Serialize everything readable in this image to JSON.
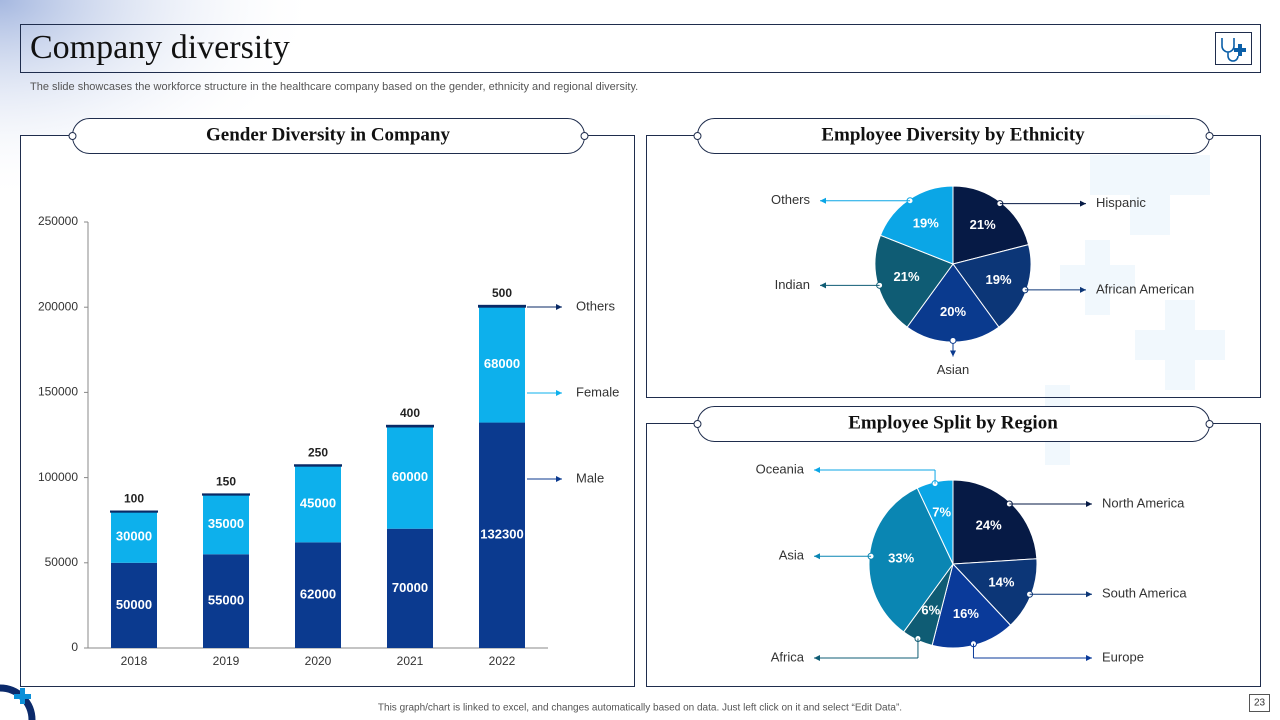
{
  "title": "Company diversity",
  "subtitle": "The slide showcases the workforce structure in the healthcare company based on the gender, ethnicity and regional diversity.",
  "footer": "This graph/chart is linked to excel, and changes automatically based on data. Just left click on it and select “Edit Data”.",
  "page_number": "23",
  "chart_data": [
    {
      "type": "bar",
      "title": "Gender Diversity in Company",
      "stacked": true,
      "categories": [
        "2018",
        "2019",
        "2020",
        "2021",
        "2022"
      ],
      "series": [
        {
          "name": "Male",
          "color": "#0b3a8f",
          "values": [
            50000,
            55000,
            62000,
            70000,
            132300
          ]
        },
        {
          "name": "Female",
          "color": "#0db0ec",
          "values": [
            30000,
            35000,
            45000,
            60000,
            68000
          ]
        },
        {
          "name": "Others",
          "color": "#0a2a66",
          "values": [
            100,
            150,
            250,
            400,
            500
          ]
        }
      ],
      "ylim": [
        0,
        250000
      ],
      "yticks": [
        0,
        50000,
        100000,
        150000,
        200000,
        250000
      ]
    },
    {
      "type": "pie",
      "title": "Employee Diversity by Ethnicity",
      "categories": [
        "Hispanic",
        "African American",
        "Asian",
        "Indian",
        "Others"
      ],
      "values": [
        21,
        19,
        20,
        21,
        19
      ],
      "value_labels": [
        "21%",
        "19%",
        "20%",
        "21%",
        "19%"
      ],
      "colors": [
        "#061a45",
        "#0c3677",
        "#0a3a8e",
        "#0f5c74",
        "#0ba6e6"
      ]
    },
    {
      "type": "pie",
      "title": "Employee Split by Region",
      "categories": [
        "North America",
        "South America",
        "Europe",
        "Africa",
        "Asia",
        "Oceania"
      ],
      "values": [
        24,
        14,
        16,
        6,
        33,
        7
      ],
      "value_labels": [
        "24%",
        "14%",
        "16%",
        "6%",
        "33%",
        "7%"
      ],
      "colors": [
        "#061a45",
        "#0c3677",
        "#0a3a9a",
        "#0f5c74",
        "#0a86b3",
        "#0ba6e6"
      ]
    }
  ]
}
